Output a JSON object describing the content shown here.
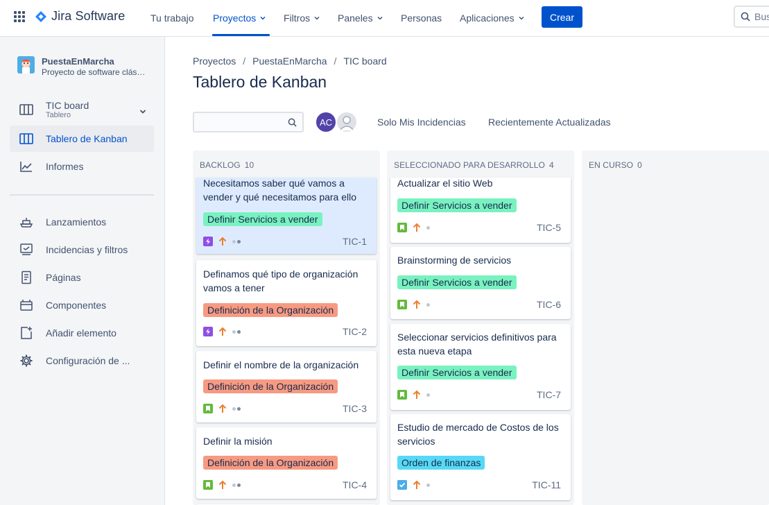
{
  "topnav": {
    "app_name": "Jira Software",
    "items": [
      "Tu trabajo",
      "Proyectos",
      "Filtros",
      "Paneles",
      "Personas",
      "Aplicaciones"
    ],
    "create_label": "Crear",
    "search_placeholder": "Bus"
  },
  "sidebar": {
    "project_name": "PuestaEnMarcha",
    "project_type": "Proyecto de software clásico",
    "board_name": "TIC board",
    "board_sub": "Tablero",
    "items": [
      "Tablero de Kanban",
      "Informes",
      "Lanzamientos",
      "Incidencias y filtros",
      "Páginas",
      "Componentes",
      "Añadir elemento",
      "Configuración de ..."
    ]
  },
  "breadcrumb": [
    "Proyectos",
    "PuestaEnMarcha",
    "TIC board"
  ],
  "page_title": "Tablero de Kanban",
  "filters": {
    "avatar_initials": "AC",
    "quick1": "Solo Mis Incidencias",
    "quick2": "Recientemente Actualizadas"
  },
  "colors": {
    "accent": "#0052CC",
    "epic_green": "#79F2C0",
    "epic_orange": "#F79A82",
    "epic_teal": "#57D9F5"
  },
  "columns": [
    {
      "title": "BACKLOG",
      "count": "10",
      "cards": [
        {
          "title": "Necesitamos saber qué vamos a vender y qué necesitamos para ello",
          "epic": "Definir Servicios a vender",
          "key": "TIC-1",
          "type": "epic-icon"
        },
        {
          "title": "Definamos qué tipo de organización vamos a tener",
          "epic": "Definición de la Organización",
          "key": "TIC-2",
          "type": "epic-icon"
        },
        {
          "title": "Definir el nombre de la organización",
          "epic": "Definición de la Organización",
          "key": "TIC-3",
          "type": "story-icon"
        },
        {
          "title": "Definir la misión",
          "epic": "Definición de la Organización",
          "key": "TIC-4",
          "type": "story-icon"
        }
      ]
    },
    {
      "title": "SELECCIONADO PARA DESARROLLO",
      "count": "4",
      "cards": [
        {
          "title": "Actualizar el sitio Web",
          "epic": "Definir Servicios a vender",
          "key": "TIC-5",
          "type": "story-icon"
        },
        {
          "title": "Brainstorming de servicios",
          "epic": "Definir Servicios a vender",
          "key": "TIC-6",
          "type": "story-icon"
        },
        {
          "title": "Seleccionar servicios definitivos para esta nueva etapa",
          "epic": "Definir Servicios a vender",
          "key": "TIC-7",
          "type": "story-icon"
        },
        {
          "title": "Estudio de mercado de Costos de los servicios",
          "epic": "Orden de finanzas",
          "key": "TIC-11",
          "type": "task-icon"
        }
      ]
    },
    {
      "title": "EN CURSO",
      "count": "0",
      "cards": []
    }
  ]
}
